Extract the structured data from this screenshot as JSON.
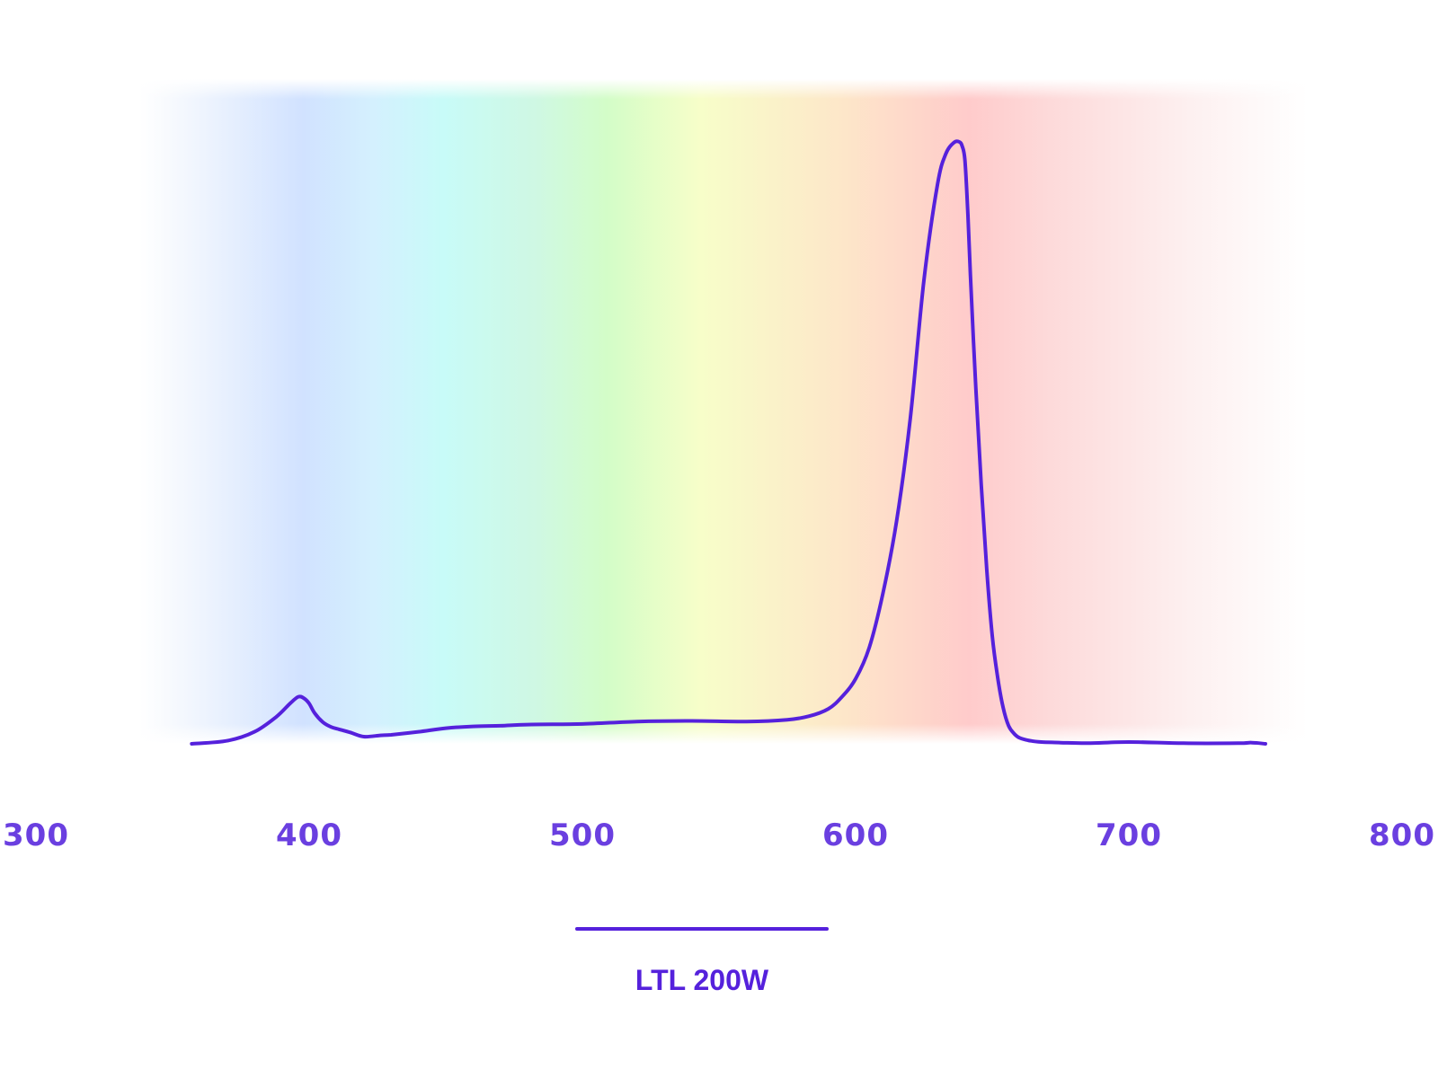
{
  "chart_data": {
    "type": "line",
    "title": "",
    "xlabel": "",
    "ylabel": "",
    "xlim": [
      300,
      800
    ],
    "ylim": [
      0,
      1
    ],
    "x_ticks": [
      300,
      400,
      500,
      600,
      700,
      800
    ],
    "x_tick_labels": [
      "300",
      "400",
      "500",
      "600",
      "700",
      "800"
    ],
    "y_axis_visible": false,
    "grid": false,
    "background": "visible-spectrum gradient",
    "legend_position": "bottom-center",
    "series": [
      {
        "name": "LTL 200W",
        "color": "#5521DC",
        "x": [
          357,
          370,
          380,
          388,
          393,
          396,
          398,
          400,
          402,
          405,
          408,
          411,
          415,
          420,
          426,
          430,
          440,
          450,
          460,
          470,
          480,
          500,
          520,
          540,
          560,
          575,
          583,
          590,
          595,
          600,
          605,
          610,
          615,
          620,
          625,
          630,
          633,
          636,
          638,
          639,
          640,
          641,
          642,
          644,
          646,
          648,
          650,
          652,
          654,
          656,
          658,
          660,
          664,
          668,
          675,
          685,
          700,
          720,
          740,
          745,
          750
        ],
        "y": [
          0.0,
          0.005,
          0.02,
          0.045,
          0.067,
          0.078,
          0.076,
          0.067,
          0.051,
          0.036,
          0.028,
          0.024,
          0.019,
          0.012,
          0.014,
          0.015,
          0.02,
          0.026,
          0.029,
          0.03,
          0.032,
          0.033,
          0.037,
          0.038,
          0.037,
          0.04,
          0.046,
          0.058,
          0.078,
          0.108,
          0.16,
          0.25,
          0.37,
          0.54,
          0.77,
          0.93,
          0.98,
          0.999,
          1.0,
          0.993,
          0.97,
          0.89,
          0.78,
          0.59,
          0.43,
          0.29,
          0.18,
          0.11,
          0.06,
          0.03,
          0.017,
          0.01,
          0.005,
          0.003,
          0.002,
          0.001,
          0.003,
          0.001,
          0.001,
          0.002,
          0.0
        ]
      }
    ]
  }
}
